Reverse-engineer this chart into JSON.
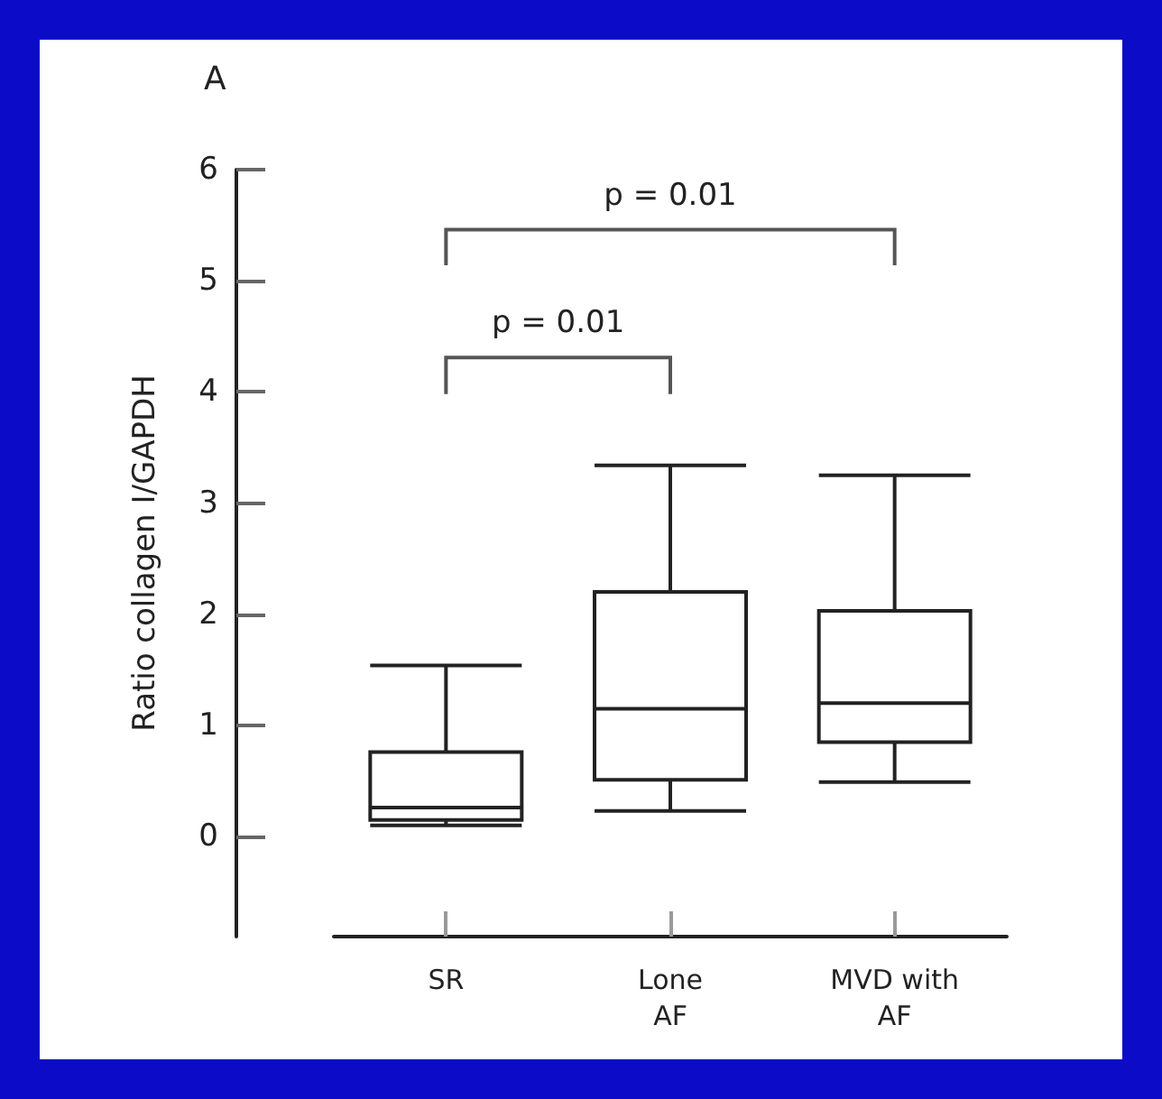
{
  "chart_data": {
    "type": "box",
    "title": "A",
    "ylabel": "Ratio collagen I/GAPDH",
    "categories": [
      "SR",
      "Lone\nAF",
      "MVD with\nAF"
    ],
    "boxes": [
      {
        "low": 0.1,
        "q1": 0.15,
        "median": 0.26,
        "q3": 0.76,
        "high": 1.54
      },
      {
        "low": 0.23,
        "q1": 0.51,
        "median": 1.15,
        "q3": 2.2,
        "high": 3.34
      },
      {
        "low": 0.49,
        "q1": 0.85,
        "median": 1.2,
        "q3": 2.03,
        "high": 3.25
      }
    ],
    "color": "#222222",
    "ylim": [
      -0.9,
      6
    ],
    "yticks": [
      0,
      1,
      2,
      3,
      4,
      5,
      6
    ],
    "grid": false,
    "annotations": [
      "p = 0.01",
      "p = 0.01"
    ]
  }
}
